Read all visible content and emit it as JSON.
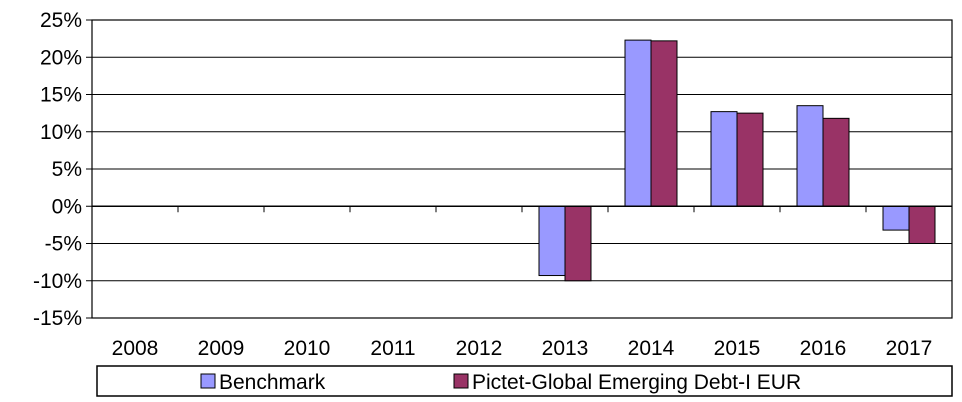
{
  "chart_data": {
    "type": "bar",
    "categories": [
      "2008",
      "2009",
      "2010",
      "2011",
      "2012",
      "2013",
      "2014",
      "2015",
      "2016",
      "2017"
    ],
    "series": [
      {
        "name": "Benchmark",
        "color": "#9999ff",
        "values": [
          null,
          null,
          null,
          null,
          null,
          -9.3,
          22.3,
          12.7,
          13.5,
          -3.2
        ]
      },
      {
        "name": "Pictet-Global Emerging Debt-I EUR",
        "color": "#993366",
        "values": [
          null,
          null,
          null,
          null,
          null,
          -10.0,
          22.2,
          12.5,
          11.8,
          -5.0
        ]
      }
    ],
    "yticks": [
      "25%",
      "20%",
      "15%",
      "10%",
      "5%",
      "0%",
      "-5%",
      "-10%",
      "-15%"
    ],
    "ylim": [
      -15,
      25
    ],
    "grid": true,
    "legend_position": "bottom"
  }
}
